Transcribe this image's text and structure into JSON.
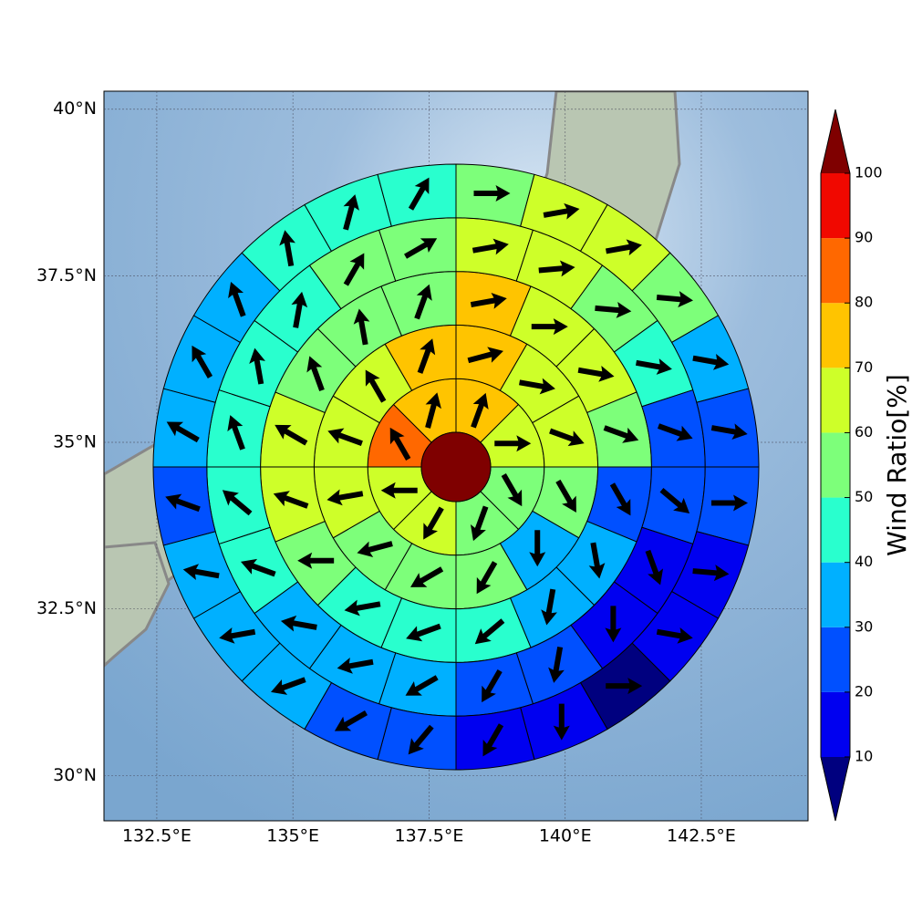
{
  "chart_data": {
    "type": "polar-sectors",
    "lonlim": [
      131.53,
      144.46
    ],
    "latlim": [
      29.32,
      40.27
    ],
    "xticks": [
      {
        "value": 132.5,
        "label": "132.5°E"
      },
      {
        "value": 135,
        "label": "135°E"
      },
      {
        "value": 137.5,
        "label": "137.5°E"
      },
      {
        "value": 140,
        "label": "140°E"
      },
      {
        "value": 142.5,
        "label": "142.5°E"
      }
    ],
    "yticks": [
      {
        "value": 40,
        "label": "40°N"
      },
      {
        "value": 37.5,
        "label": "37.5°N"
      },
      {
        "value": 35,
        "label": "35°N"
      },
      {
        "value": 32.5,
        "label": "32.5°N"
      },
      {
        "value": 30,
        "label": "30°N"
      }
    ],
    "center_value": 100,
    "rings": [
      {
        "values": [
          75,
          65,
          55,
          55,
          65,
          65,
          85,
          75
        ],
        "directions": [
          20,
          90,
          150,
          200,
          210,
          270,
          330,
          15
        ]
      },
      {
        "values": [
          75,
          65,
          65,
          55,
          35,
          55,
          55,
          55,
          65,
          65,
          65,
          75
        ],
        "directions": [
          75,
          100,
          110,
          150,
          180,
          210,
          240,
          255,
          260,
          290,
          330,
          20
        ]
      },
      {
        "values": [
          75,
          65,
          65,
          55,
          25,
          35,
          35,
          45,
          45,
          45,
          55,
          65,
          65,
          55,
          55,
          55
        ],
        "directions": [
          80,
          90,
          100,
          110,
          150,
          170,
          190,
          230,
          250,
          260,
          270,
          290,
          300,
          340,
          350,
          20
        ]
      },
      {
        "values": [
          65,
          65,
          55,
          45,
          25,
          25,
          15,
          15,
          25,
          25,
          35,
          35,
          35,
          45,
          45,
          45,
          45,
          45,
          55,
          55
        ],
        "directions": [
          80,
          85,
          95,
          100,
          110,
          130,
          160,
          180,
          190,
          210,
          240,
          260,
          280,
          290,
          310,
          340,
          350,
          10,
          30,
          60
        ]
      },
      {
        "values": [
          55,
          65,
          65,
          55,
          35,
          25,
          25,
          15,
          15,
          5,
          15,
          15,
          25,
          25,
          35,
          35,
          35,
          25,
          35,
          35,
          35,
          45,
          45,
          45
        ],
        "directions": [
          90,
          80,
          80,
          95,
          100,
          100,
          90,
          95,
          100,
          90,
          180,
          210,
          220,
          240,
          250,
          260,
          280,
          290,
          300,
          330,
          340,
          350,
          15,
          30
        ]
      }
    ],
    "colorbar": {
      "label": "Wind Ratio[%]",
      "ticks": [
        10,
        20,
        30,
        40,
        50,
        60,
        70,
        80,
        90,
        100
      ],
      "under_color": "#00007f",
      "colors": [
        "#0000f0",
        "#0050ff",
        "#00b0ff",
        "#29ffce",
        "#7dff7a",
        "#ceff29",
        "#ffc400",
        "#ff6800",
        "#f10800"
      ],
      "over_color": "#7f0000"
    }
  }
}
